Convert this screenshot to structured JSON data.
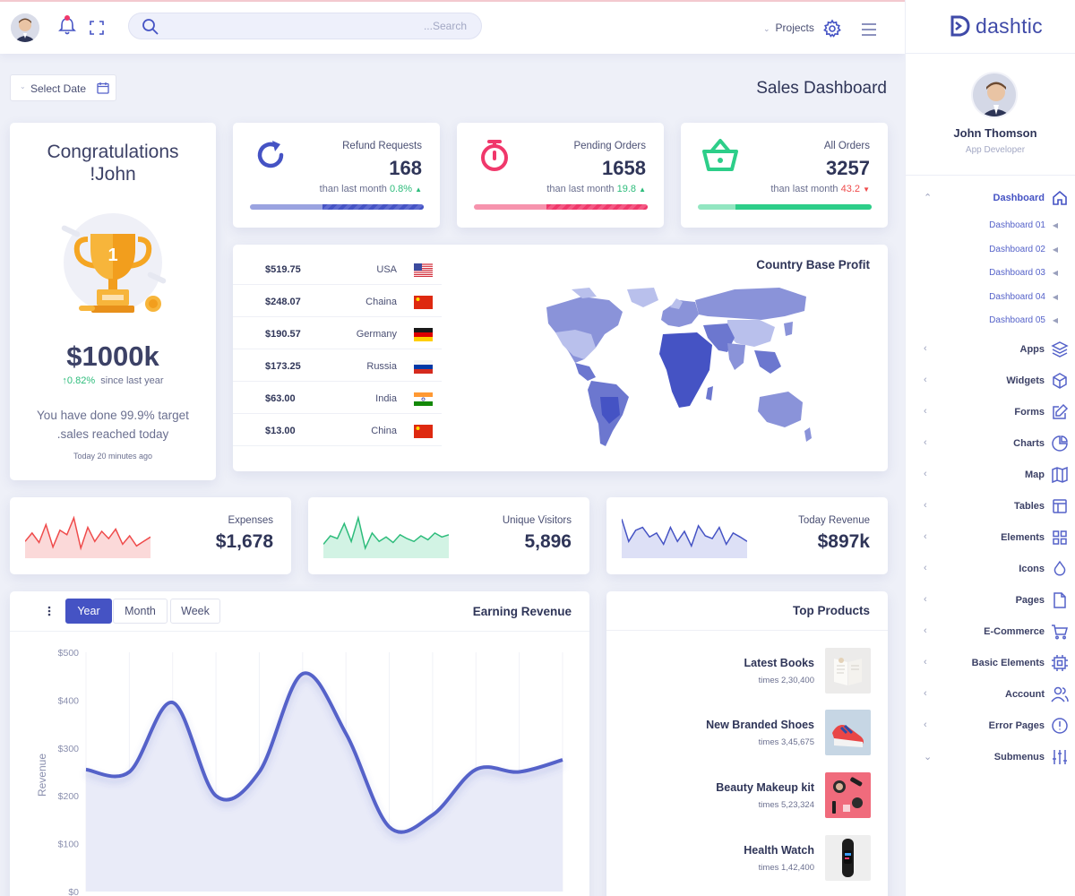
{
  "topbar": {
    "search_placeholder": "...Search",
    "projects_label": "Projects"
  },
  "brand": {
    "name": "dashtic"
  },
  "profile": {
    "name": "John Thomson",
    "role": "App Developer"
  },
  "sidebar": {
    "items": [
      {
        "label": "Dashboard",
        "icon": "home-icon",
        "active": true,
        "chevron": "^"
      },
      {
        "label": "Apps",
        "icon": "layers-icon",
        "chevron": "<"
      },
      {
        "label": "Widgets",
        "icon": "cube-icon",
        "chevron": "<"
      },
      {
        "label": "Forms",
        "icon": "edit-icon",
        "chevron": "<"
      },
      {
        "label": "Charts",
        "icon": "pie-chart-icon",
        "chevron": "<"
      },
      {
        "label": "Map",
        "icon": "map-icon",
        "chevron": "<"
      },
      {
        "label": "Tables",
        "icon": "table-icon",
        "chevron": "<"
      },
      {
        "label": "Elements",
        "icon": "grid-icon",
        "chevron": "<"
      },
      {
        "label": "Icons",
        "icon": "droplet-icon",
        "chevron": "<"
      },
      {
        "label": "Pages",
        "icon": "file-icon",
        "chevron": "<"
      },
      {
        "label": "E-Commerce",
        "icon": "cart-icon",
        "chevron": "<"
      },
      {
        "label": "Basic Elements",
        "icon": "cpu-icon",
        "chevron": "<"
      },
      {
        "label": "Account",
        "icon": "users-icon",
        "chevron": "<"
      },
      {
        "label": "Error Pages",
        "icon": "alert-icon",
        "chevron": "<"
      },
      {
        "label": "Submenus",
        "icon": "sliders-icon",
        "chevron": "v"
      }
    ],
    "subitems": [
      "Dashboard 01",
      "Dashboard 02",
      "Dashboard 03",
      "Dashboard 04",
      "Dashboard 05"
    ]
  },
  "page": {
    "select_date": "Select Date",
    "title": "Sales Dashboard"
  },
  "congrats": {
    "title_line1": "Congratulations",
    "title_line2": "!John",
    "trophy_number": "1",
    "amount": "$1000k",
    "growth_value": "0.82%",
    "growth_text": "since last year",
    "note_line1": "You have done 99.9% target",
    "note_line2": ".sales reached today",
    "time": "Today 20 minutes ago"
  },
  "stats": [
    {
      "label": "Refund Requests",
      "value": "168",
      "compare": "than last month",
      "delta": "0.8%",
      "trend": "up",
      "color": "#4553c4",
      "light": "#9aa3e0"
    },
    {
      "label": "Pending Orders",
      "value": "1658",
      "compare": "than last month",
      "delta": "19.8",
      "trend": "up",
      "color": "#f0386b",
      "light": "#f693ad"
    },
    {
      "label": "All Orders",
      "value": "3257",
      "compare": "than last month",
      "delta": "43.2",
      "trend": "down",
      "color": "#2dce89",
      "light": "#92e6c1"
    }
  ],
  "country_profit": {
    "title": "Country Base Profit",
    "rows": [
      {
        "amount": "$519.75",
        "country": "USA"
      },
      {
        "amount": "$248.07",
        "country": "Chaina"
      },
      {
        "amount": "$190.57",
        "country": "Germany"
      },
      {
        "amount": "$173.25",
        "country": "Russia"
      },
      {
        "amount": "$63.00",
        "country": "India"
      },
      {
        "amount": "$13.00",
        "country": "China"
      }
    ]
  },
  "minis": [
    {
      "label": "Expenses",
      "value": "$1,678",
      "color": "#ef4b4b",
      "fill": "#fbd9d9",
      "points": [
        30,
        45,
        28,
        60,
        20,
        50,
        42,
        72,
        18,
        55,
        30,
        48,
        35,
        52,
        25,
        40,
        22,
        30,
        38
      ]
    },
    {
      "label": "Unique Visitors",
      "value": "5,896",
      "color": "#2dbc7b",
      "fill": "#d2f3e4",
      "points": [
        25,
        40,
        35,
        62,
        30,
        72,
        18,
        45,
        30,
        38,
        28,
        42,
        35,
        30,
        40,
        33,
        45,
        38,
        42
      ]
    },
    {
      "label": "Today Revenue",
      "value": "$897k",
      "color": "#4553c4",
      "fill": "#dde0f6",
      "points": [
        70,
        30,
        50,
        55,
        38,
        45,
        25,
        55,
        30,
        48,
        22,
        58,
        40,
        35,
        55,
        25,
        45,
        38,
        30
      ]
    }
  ],
  "earning": {
    "title": "Earning Revenue",
    "tabs": [
      "Year",
      "Month",
      "Week"
    ],
    "active_tab": "Year",
    "ylabel": "Revenue"
  },
  "chart_data": {
    "type": "area",
    "title": "Earning Revenue",
    "ylabel": "Revenue",
    "xlabel": "",
    "ylim": [
      0,
      500
    ],
    "yticks": [
      "$500",
      "$400",
      "$300",
      "$200",
      "$100",
      "$0"
    ],
    "series": [
      {
        "values": [
          255,
          250,
          395,
          200,
          250,
          455,
          330,
          135,
          160,
          255,
          250,
          275
        ]
      }
    ],
    "grid": true
  },
  "products": {
    "title": "Top Products",
    "items": [
      {
        "name": "Latest Books",
        "times": "times 2,30,400"
      },
      {
        "name": "New Branded Shoes",
        "times": "times 3,45,675"
      },
      {
        "name": "Beauty Makeup kit",
        "times": "times 5,23,324"
      },
      {
        "name": "Health Watch",
        "times": "times 1,42,400"
      }
    ]
  }
}
